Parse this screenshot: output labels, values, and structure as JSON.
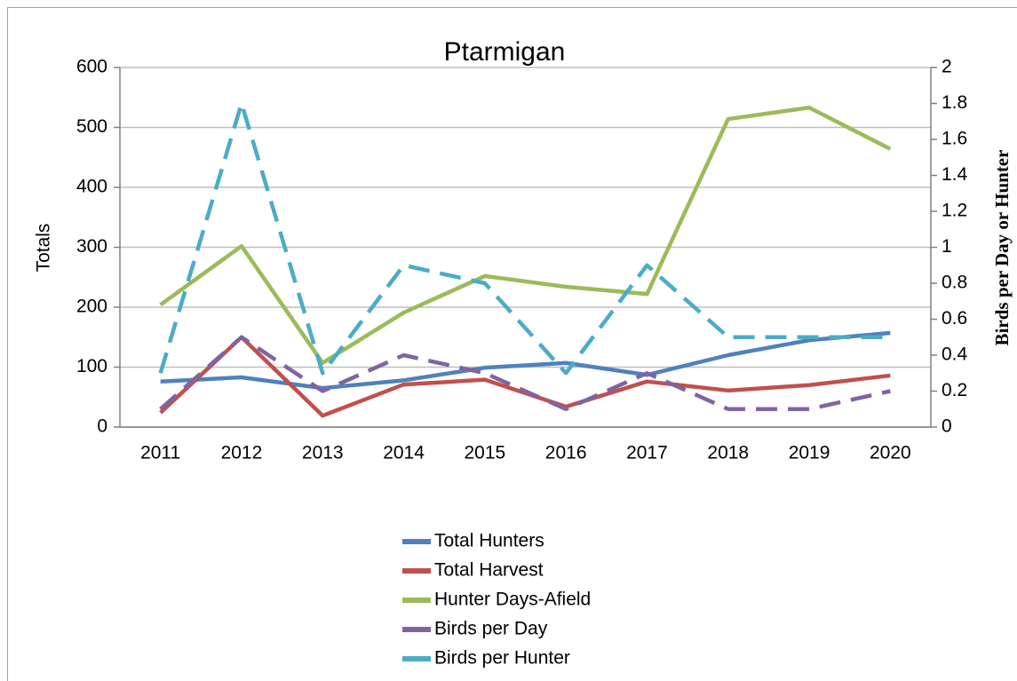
{
  "chart_data": {
    "type": "line",
    "title": "Ptarmigan",
    "y_label": "Totals",
    "y2_label": "Birds per Day or Hunter",
    "categories": [
      "2011",
      "2012",
      "2013",
      "2014",
      "2015",
      "2016",
      "2017",
      "2018",
      "2019",
      "2020"
    ],
    "series": [
      {
        "name": "Total Hunters",
        "color": "#4f81bd",
        "values": [
          76,
          83,
          65,
          78,
          99,
          107,
          87,
          120,
          145,
          157
        ]
      },
      {
        "name": "Total Harvest",
        "color": "#c0504d",
        "values": [
          24,
          150,
          19,
          71,
          79,
          34,
          76,
          61,
          70,
          86
        ]
      },
      {
        "name": "Hunter Days-Afield",
        "color": "#9bbb59",
        "values": [
          204,
          302,
          107,
          191,
          252,
          234,
          222,
          514,
          533,
          464
        ]
      },
      {
        "name": "Birds per Day",
        "color": "#8064a2",
        "dashed": true,
        "axis": "y2",
        "values": [
          0.1,
          0.5,
          0.2,
          0.4,
          0.3,
          0.1,
          0.3,
          0.1,
          0.1,
          0.2
        ]
      },
      {
        "name": "Birds per Hunter",
        "color": "#4bacc6",
        "dashed": true,
        "axis": "y2",
        "values": [
          0.3,
          1.8,
          0.3,
          0.9,
          0.8,
          0.3,
          0.9,
          0.5,
          0.5,
          0.5
        ]
      }
    ],
    "ylim": [
      0,
      600
    ],
    "yticks": [
      0,
      100,
      200,
      300,
      400,
      500,
      600
    ],
    "y2lim": [
      0,
      2
    ],
    "y2ticks": [
      0,
      0.2,
      0.4,
      0.6,
      0.8,
      1,
      1.2,
      1.4,
      1.6,
      1.8,
      2
    ],
    "grid": true,
    "legend": "bottom"
  }
}
